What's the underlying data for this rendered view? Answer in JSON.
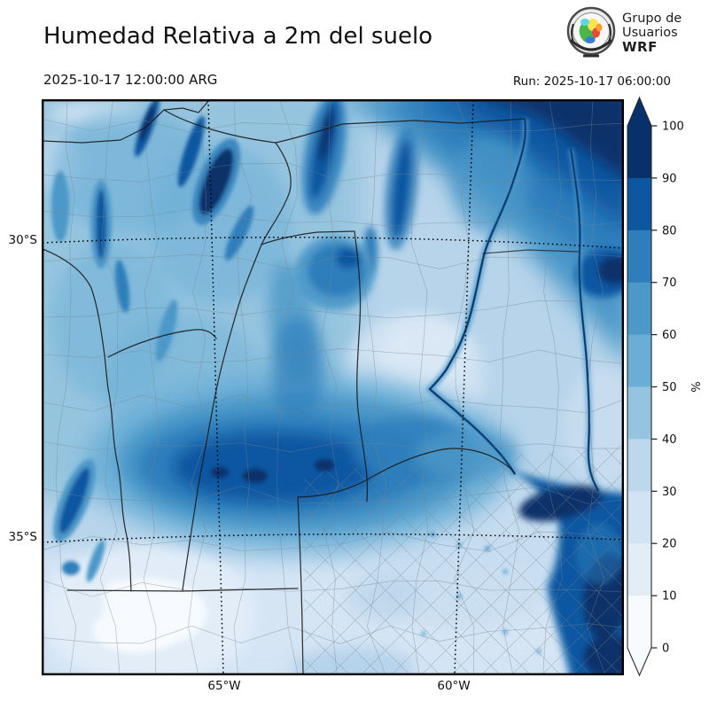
{
  "header": {
    "title": "Humedad Relativa a 2m del suelo",
    "valid_time": "2025-10-17 12:00:00 ARG",
    "run_label": "Run: 2025-10-17 06:00:00",
    "logo": {
      "line1": "Grupo de",
      "line2": "Usuarios",
      "line3": "WRF"
    }
  },
  "axes": {
    "lat_labels": [
      "30°S",
      "35°S"
    ],
    "lon_labels": [
      "65°W",
      "60°W"
    ]
  },
  "colorbar": {
    "unit": "%",
    "ticks": [
      0,
      10,
      20,
      30,
      40,
      50,
      60,
      70,
      80,
      90,
      100
    ],
    "colors_low_to_high": [
      "#f7fbff",
      "#e2edf8",
      "#d2e3f3",
      "#bdd7ec",
      "#94c4df",
      "#6aaed6",
      "#4b98c9",
      "#2e7ebc",
      "#0d57a1",
      "#08306b"
    ]
  },
  "field_regions": [
    {
      "area": "northeast corner",
      "humidity_pct": "90-100"
    },
    {
      "area": "western mountain ridges (narrow streaks)",
      "humidity_pct": "80-100"
    },
    {
      "area": "south-central core blob",
      "humidity_pct": "70-90"
    },
    {
      "area": "river valley running north-south on the east",
      "humidity_pct": "60-80"
    },
    {
      "area": "southeast estuary / coastal water",
      "humidity_pct": "80-100"
    },
    {
      "area": "central plains",
      "humidity_pct": "30-50"
    },
    {
      "area": "south-central lowlands white patch",
      "humidity_pct": "0-10"
    },
    {
      "area": "southern band below 35°S",
      "humidity_pct": "10-30"
    }
  ]
}
